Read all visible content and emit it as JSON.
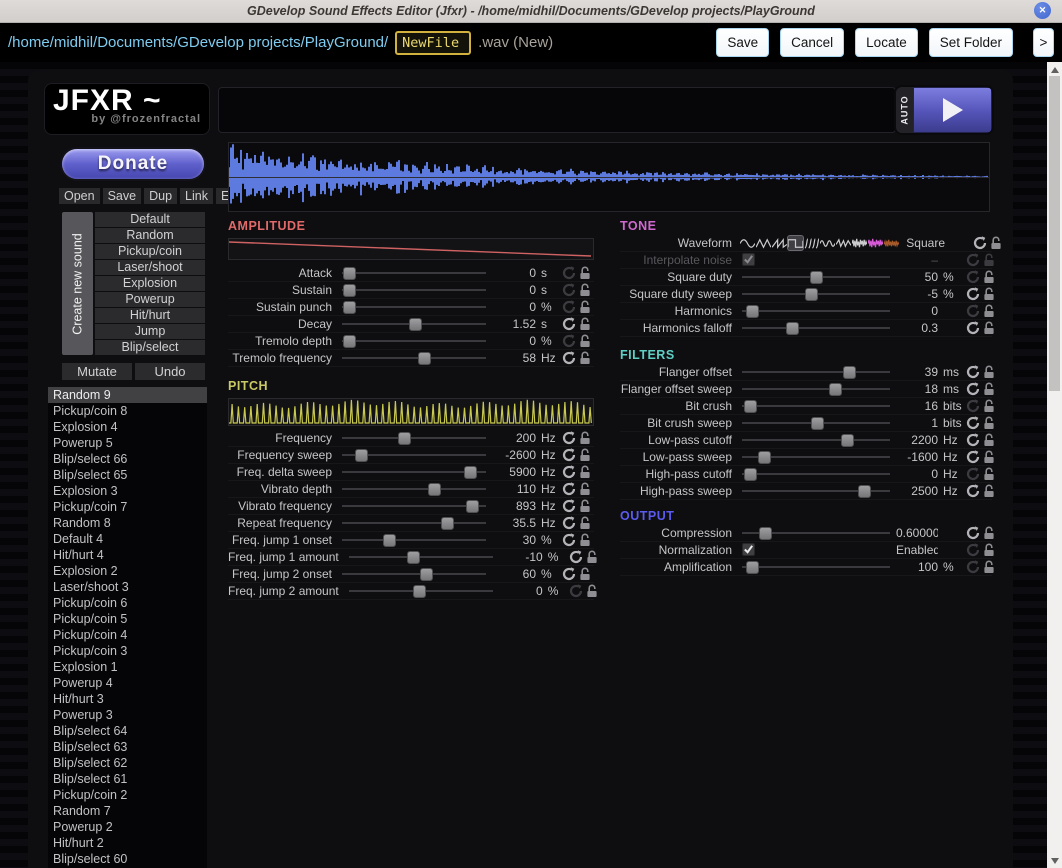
{
  "window": {
    "title": "GDevelop Sound Effects Editor (Jfxr) - /home/midhil/Documents/GDevelop projects/PlayGround",
    "close_icon": "✕"
  },
  "gdevelop_bar": {
    "path_prefix": "/home/midhil/Documents/GDevelop projects/PlayGround/",
    "filename_value": "NewFile",
    "suffix": ".wav (New)",
    "buttons": [
      "Save",
      "Cancel",
      "Locate",
      "Set Folder"
    ],
    "more_button": ">"
  },
  "jfxr": {
    "logo": "JFXR ~",
    "logo_byline": "by @frozenfractal",
    "auto_label": "AUTO",
    "donate_label": "Donate",
    "file_buttons": [
      "Open",
      "Save",
      "Dup",
      "Link",
      "Export"
    ],
    "create_new_label": "Create new sound",
    "presets": [
      "Default",
      "Random",
      "Pickup/coin",
      "Laser/shoot",
      "Explosion",
      "Powerup",
      "Hit/hurt",
      "Jump",
      "Blip/select"
    ],
    "mutate_label": "Mutate",
    "undo_label": "Undo",
    "selected_sound": "Random 9",
    "sounds": [
      "Random 9",
      "Pickup/coin 8",
      "Explosion 4",
      "Powerup 5",
      "Blip/select 66",
      "Blip/select 65",
      "Explosion 3",
      "Pickup/coin 7",
      "Random 8",
      "Default 4",
      "Hit/hurt 4",
      "Explosion 2",
      "Laser/shoot 3",
      "Pickup/coin 6",
      "Pickup/coin 5",
      "Pickup/coin 4",
      "Pickup/coin 3",
      "Explosion 1",
      "Powerup 4",
      "Hit/hurt 3",
      "Powerup 3",
      "Blip/select 64",
      "Blip/select 63",
      "Blip/select 62",
      "Blip/select 61",
      "Pickup/coin 2",
      "Random 7",
      "Powerup 2",
      "Hit/hurt 2",
      "Blip/select 60"
    ]
  },
  "colors": {
    "amplitude": "#e06a6a",
    "pitch": "#c9c965",
    "tone": "#cf69cf",
    "filters": "#5fcfc4",
    "output": "#5b5bef",
    "waveform_plot": "#5d7ade",
    "envelope_line": "#cf6262",
    "pitch_line": "#c9c950"
  },
  "sections": {
    "left": [
      {
        "id": "amplitude",
        "title": "AMPLITUDE",
        "color": "#e06a6a",
        "graph": "envelope",
        "rows": [
          {
            "label": "Attack",
            "type": "slider",
            "pos": 0.02,
            "value": "0",
            "unit": "s",
            "reset": false
          },
          {
            "label": "Sustain",
            "type": "slider",
            "pos": 0.02,
            "value": "0",
            "unit": "s",
            "reset": false
          },
          {
            "label": "Sustain punch",
            "type": "slider",
            "pos": 0.02,
            "value": "0",
            "unit": "%",
            "reset": false
          },
          {
            "label": "Decay",
            "type": "slider",
            "pos": 0.51,
            "value": "1.52",
            "unit": "s",
            "reset": true
          },
          {
            "label": "Tremolo depth",
            "type": "slider",
            "pos": 0.02,
            "value": "0",
            "unit": "%",
            "reset": false
          },
          {
            "label": "Tremolo frequency",
            "type": "slider",
            "pos": 0.58,
            "value": "58",
            "unit": "Hz",
            "reset": true
          }
        ]
      },
      {
        "id": "pitch",
        "title": "PITCH",
        "color": "#c9c965",
        "graph": "pitchwave",
        "rows": [
          {
            "label": "Frequency",
            "type": "slider",
            "pos": 0.43,
            "value": "200",
            "unit": "Hz",
            "reset": true
          },
          {
            "label": "Frequency sweep",
            "type": "slider",
            "pos": 0.11,
            "value": "-2600",
            "unit": "Hz",
            "reset": true
          },
          {
            "label": "Freq. delta sweep",
            "type": "slider",
            "pos": 0.92,
            "value": "5900",
            "unit": "Hz",
            "reset": true
          },
          {
            "label": "Vibrato depth",
            "type": "slider",
            "pos": 0.65,
            "value": "110",
            "unit": "Hz",
            "reset": true
          },
          {
            "label": "Vibrato frequency",
            "type": "slider",
            "pos": 0.93,
            "value": "893",
            "unit": "Hz",
            "reset": true
          },
          {
            "label": "Repeat frequency",
            "type": "slider",
            "pos": 0.75,
            "value": "35.5",
            "unit": "Hz",
            "reset": true
          },
          {
            "label": "Freq. jump 1 onset",
            "type": "slider",
            "pos": 0.32,
            "value": "30",
            "unit": "%",
            "reset": true
          },
          {
            "label": "Freq. jump 1 amount",
            "type": "slider",
            "pos": 0.45,
            "value": "-10",
            "unit": "%",
            "reset": true
          },
          {
            "label": "Freq. jump 2 onset",
            "type": "slider",
            "pos": 0.59,
            "value": "60",
            "unit": "%",
            "reset": true
          },
          {
            "label": "Freq. jump 2 amount",
            "type": "slider",
            "pos": 0.49,
            "value": "0",
            "unit": "%",
            "reset": false
          }
        ]
      }
    ],
    "right": [
      {
        "id": "tone",
        "title": "TONE",
        "color": "#cf69cf",
        "rows": [
          {
            "label": "Waveform",
            "type": "waveform",
            "value": "Square",
            "reset": true,
            "icons": [
              "sine",
              "triangle",
              "sawtooth",
              "square",
              "tangent",
              "whistle",
              "breaker",
              "whitenoise",
              "pinknoise",
              "brownnoise"
            ],
            "selected_icon": 3
          },
          {
            "label": "Interpolate noise",
            "type": "checkbox",
            "checked": true,
            "value": "–",
            "unit": "",
            "reset": false,
            "dim": true
          },
          {
            "label": "Square duty",
            "type": "slider",
            "pos": 0.5,
            "value": "50",
            "unit": "%",
            "reset": false
          },
          {
            "label": "Square duty sweep",
            "type": "slider",
            "pos": 0.47,
            "value": "-5",
            "unit": "%",
            "reset": true
          },
          {
            "label": "Harmonics",
            "type": "slider",
            "pos": 0.04,
            "value": "0",
            "unit": "",
            "reset": false
          },
          {
            "label": "Harmonics falloff",
            "type": "slider",
            "pos": 0.33,
            "value": "0.3",
            "unit": "",
            "reset": true
          }
        ]
      },
      {
        "id": "filters",
        "title": "FILTERS",
        "color": "#5fcfc4",
        "rows": [
          {
            "label": "Flanger offset",
            "type": "slider",
            "pos": 0.74,
            "value": "39",
            "unit": "ms",
            "reset": true
          },
          {
            "label": "Flanger offset sweep",
            "type": "slider",
            "pos": 0.64,
            "value": "18",
            "unit": "ms",
            "reset": true
          },
          {
            "label": "Bit crush",
            "type": "slider",
            "pos": 0.03,
            "value": "16",
            "unit": "bits",
            "reset": false
          },
          {
            "label": "Bit crush sweep",
            "type": "slider",
            "pos": 0.51,
            "value": "1",
            "unit": "bits",
            "reset": true
          },
          {
            "label": "Low-pass cutoff",
            "type": "slider",
            "pos": 0.73,
            "value": "2200",
            "unit": "Hz",
            "reset": true
          },
          {
            "label": "Low-pass sweep",
            "type": "slider",
            "pos": 0.13,
            "value": "-1600",
            "unit": "Hz",
            "reset": true
          },
          {
            "label": "High-pass cutoff",
            "type": "slider",
            "pos": 0.03,
            "value": "0",
            "unit": "Hz",
            "reset": false
          },
          {
            "label": "High-pass sweep",
            "type": "slider",
            "pos": 0.85,
            "value": "2500",
            "unit": "Hz",
            "reset": true
          }
        ]
      },
      {
        "id": "output",
        "title": "OUTPUT",
        "color": "#5b5bef",
        "rows": [
          {
            "label": "Compression",
            "type": "slider",
            "pos": 0.14,
            "value": "0.600000",
            "unit": "",
            "reset": true,
            "clip": true
          },
          {
            "label": "Normalization",
            "type": "checkbox",
            "checked": true,
            "value": "Enabled",
            "unit": "",
            "reset": false
          },
          {
            "label": "Amplification",
            "type": "slider",
            "pos": 0.04,
            "value": "100",
            "unit": "%",
            "reset": false
          }
        ]
      }
    ]
  }
}
